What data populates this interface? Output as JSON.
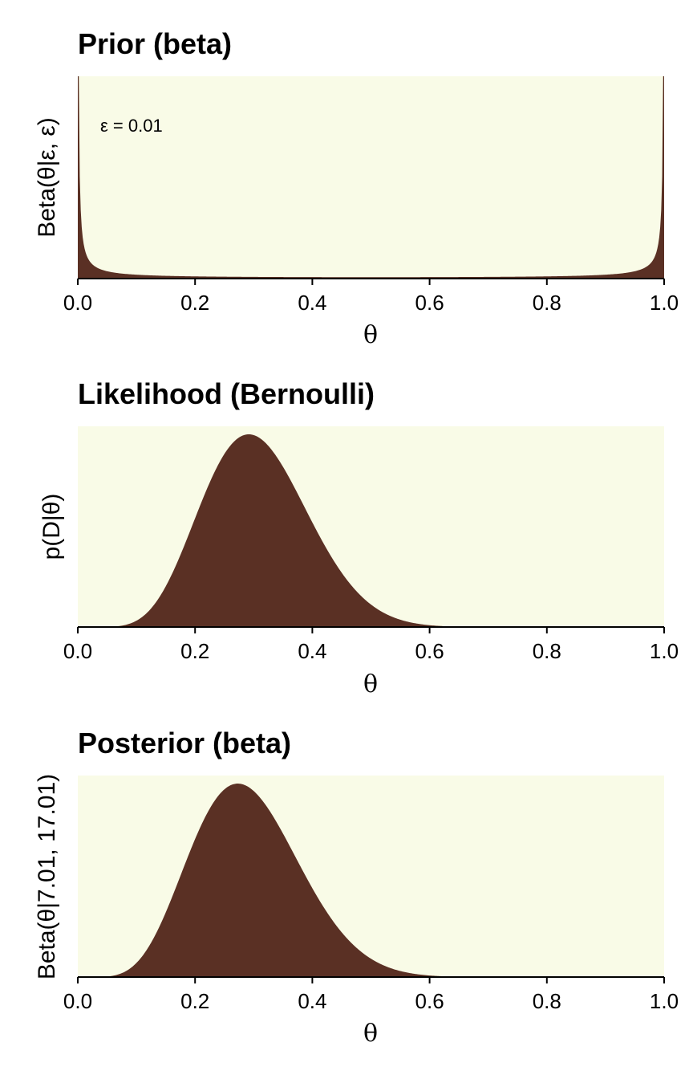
{
  "colors": {
    "panel_bg": "#f9fbe7",
    "fill": "#5a3024",
    "axis": "#000000"
  },
  "chart_data": [
    {
      "type": "area",
      "title": "Prior (beta)",
      "xlabel": "θ",
      "ylabel": "Beta(θ|ε, ε)",
      "annotation": "ε = 0.01",
      "xlim": [
        0,
        1
      ],
      "xticks": [
        "0.0",
        "0.2",
        "0.4",
        "0.6",
        "0.8",
        "1.0"
      ],
      "distribution": {
        "family": "beta",
        "a": 0.01,
        "b": 0.01
      },
      "series": [
        {
          "x": [
            0.0,
            0.002,
            0.005,
            0.01,
            0.02,
            0.03,
            0.05,
            0.1,
            0.2,
            0.3,
            0.5,
            0.7,
            0.8,
            0.9,
            0.95,
            0.97,
            0.98,
            0.99,
            0.995,
            0.998,
            1.0
          ],
          "y": [
            0.6,
            0.48,
            0.2,
            0.099,
            0.05,
            0.033,
            0.02,
            0.011,
            0.0062,
            0.0047,
            0.004,
            0.0047,
            0.0062,
            0.011,
            0.02,
            0.033,
            0.05,
            0.099,
            0.2,
            0.48,
            0.6
          ]
        }
      ]
    },
    {
      "type": "area",
      "title": "Likelihood (Bernoulli)",
      "xlabel": "θ",
      "ylabel": "p(D|θ)",
      "xlim": [
        0,
        1
      ],
      "xticks": [
        "0.0",
        "0.2",
        "0.4",
        "0.6",
        "0.8",
        "1.0"
      ],
      "distribution": {
        "family": "bernoulli_likelihood",
        "successes": 7,
        "failures": 17
      },
      "series": [
        {
          "x": [
            0.0,
            0.05,
            0.1,
            0.15,
            0.2,
            0.25,
            0.29,
            0.35,
            0.4,
            0.45,
            0.5,
            0.55,
            0.6,
            0.7,
            0.8,
            1.0
          ],
          "y": [
            0.0,
            0.007,
            0.108,
            0.396,
            0.731,
            0.948,
            1.0,
            0.885,
            0.613,
            0.321,
            0.128,
            0.038,
            0.009,
            0.0,
            0.0,
            0.0
          ]
        }
      ]
    },
    {
      "type": "area",
      "title": "Posterior (beta)",
      "xlabel": "θ",
      "ylabel": "Beta(θ|7.01, 17.01)",
      "xlim": [
        0,
        1
      ],
      "xticks": [
        "0.0",
        "0.2",
        "0.4",
        "0.6",
        "0.8",
        "1.0"
      ],
      "distribution": {
        "family": "beta",
        "a": 7.01,
        "b": 17.01
      },
      "series": [
        {
          "x": [
            0.0,
            0.05,
            0.1,
            0.15,
            0.2,
            0.25,
            0.28,
            0.3,
            0.35,
            0.4,
            0.45,
            0.5,
            0.55,
            0.6,
            0.7,
            0.8,
            1.0
          ],
          "y": [
            0.0,
            0.03,
            0.58,
            2.1,
            3.87,
            4.95,
            5.1,
            4.92,
            4.0,
            2.6,
            1.35,
            0.56,
            0.19,
            0.05,
            0.002,
            0.0,
            0.0
          ]
        }
      ]
    }
  ]
}
